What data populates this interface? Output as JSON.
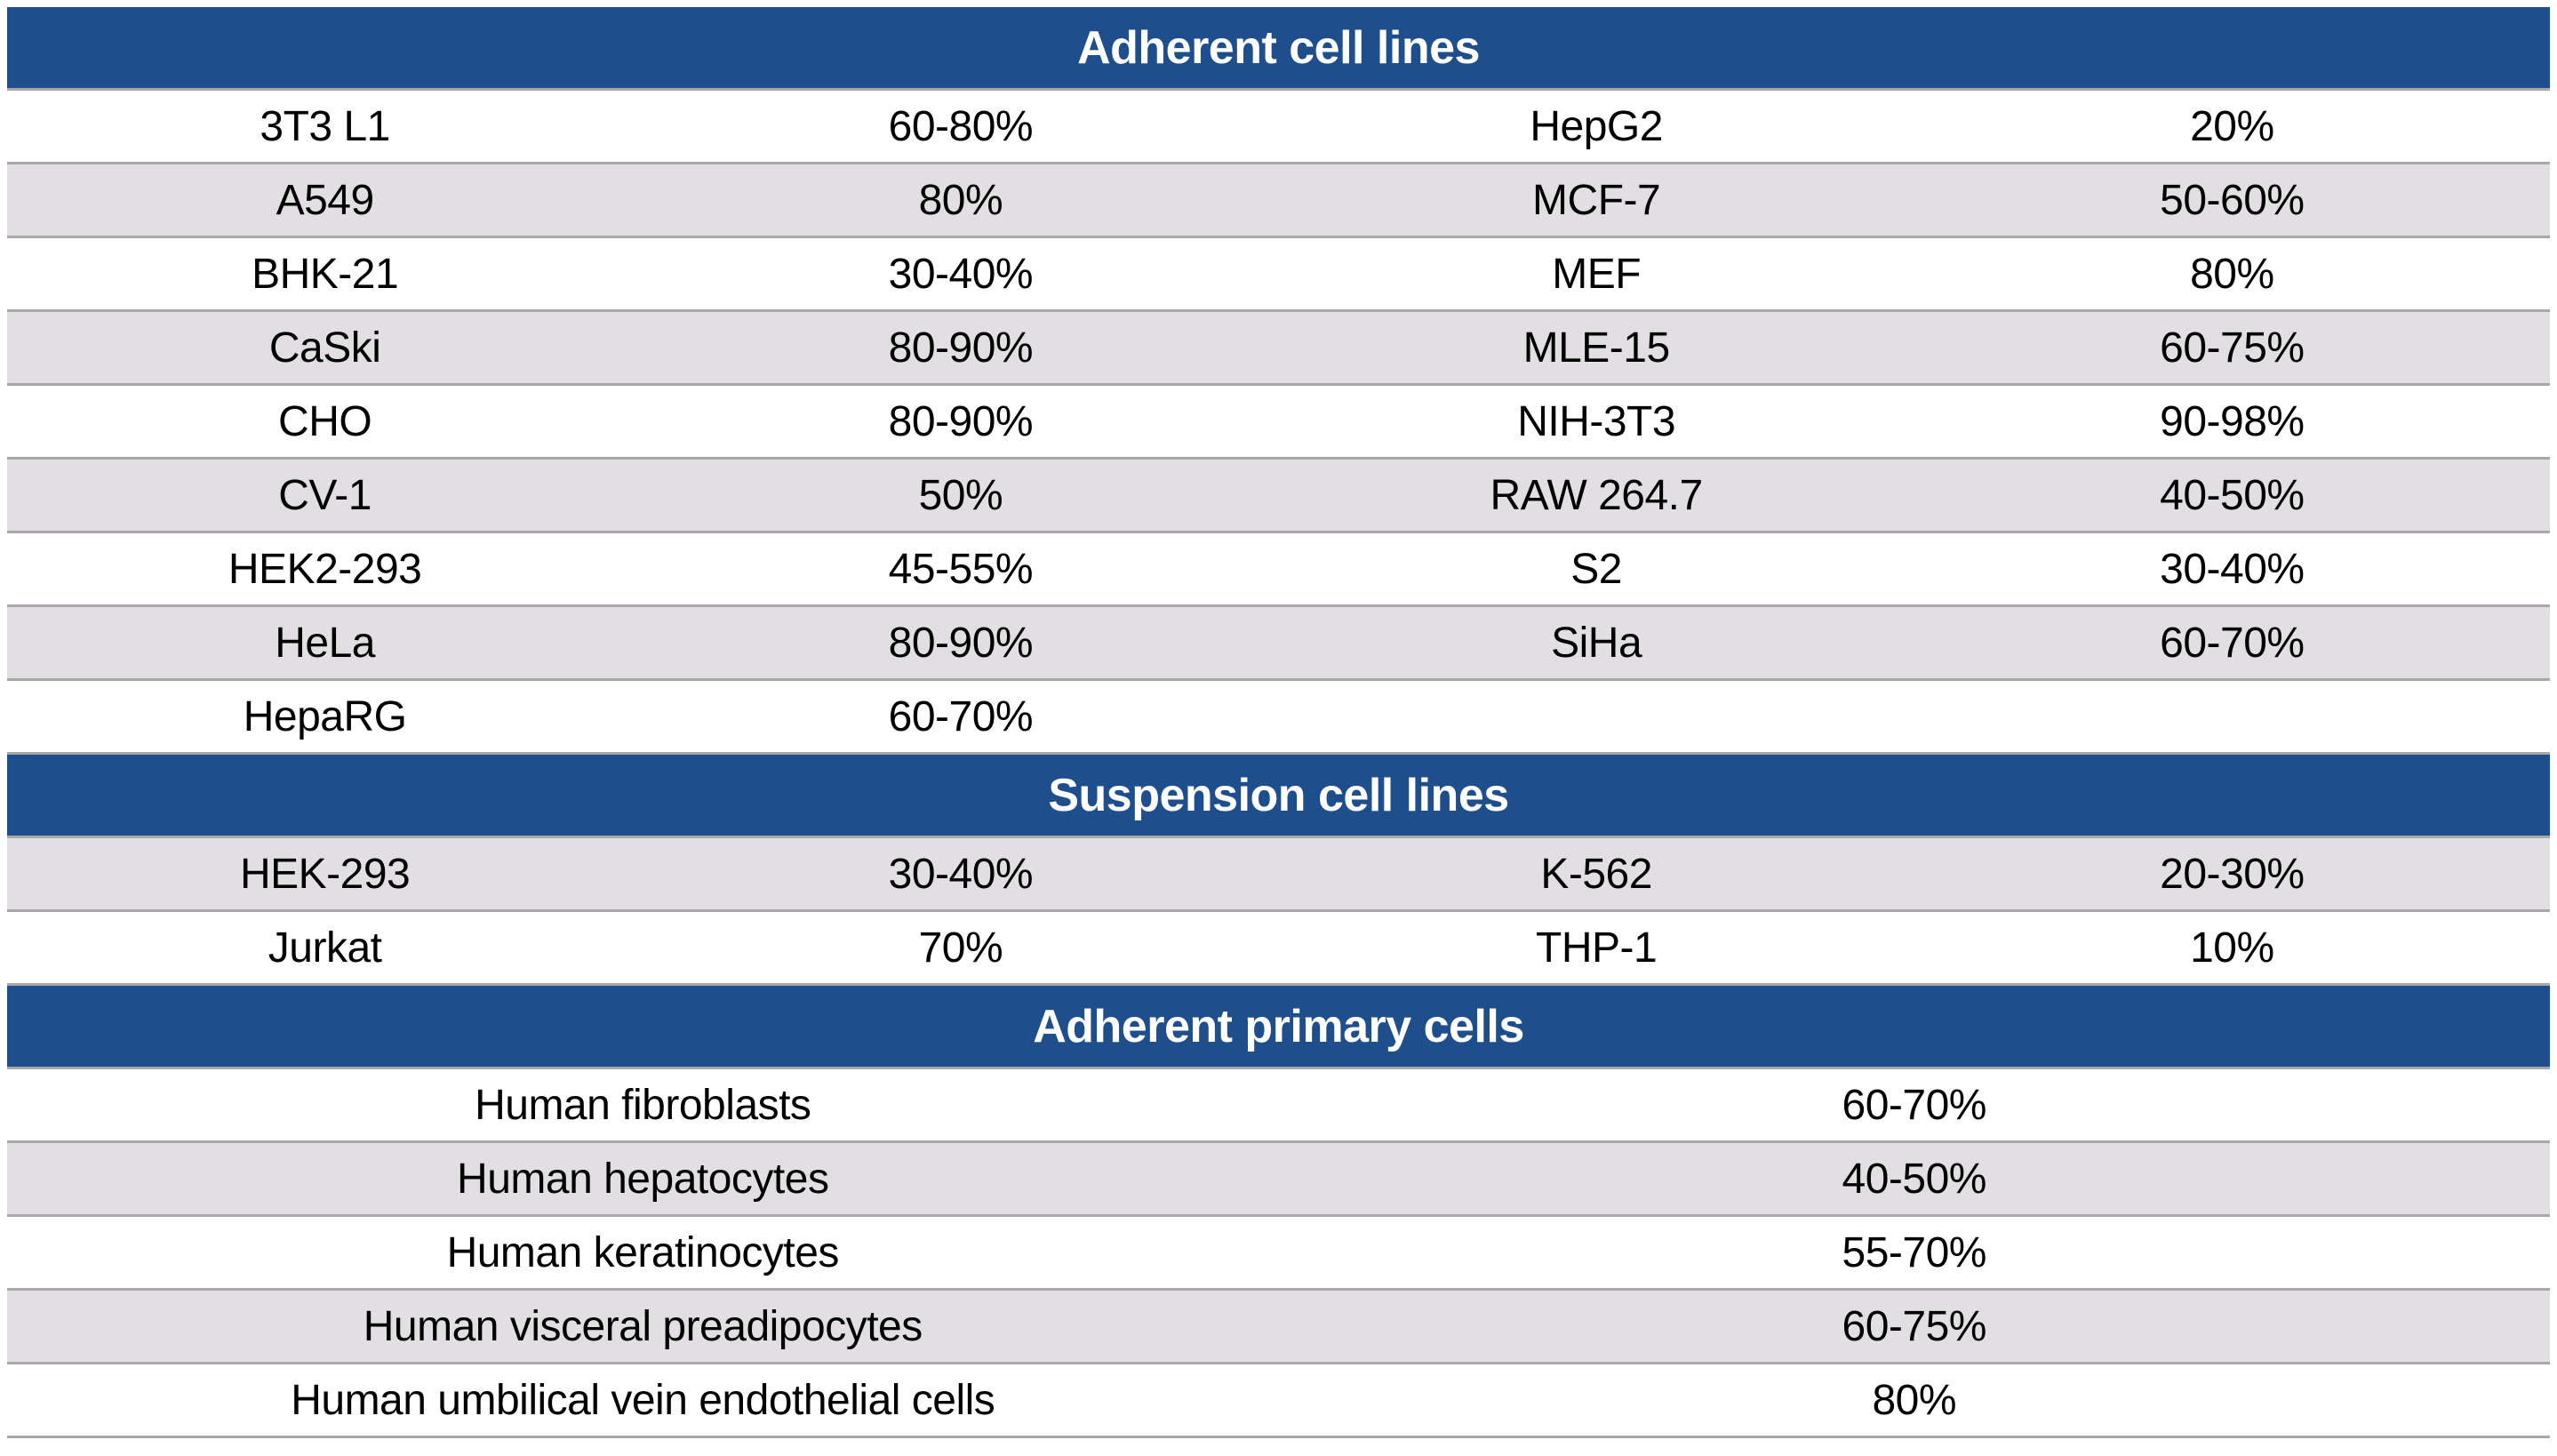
{
  "colors": {
    "header_bg": "#1F4E8C",
    "header_text": "#FFFFFF",
    "row_bg": "#FFFFFF",
    "row_alt_bg": "#E2DFE3",
    "border": "#A9A7AA",
    "text": "#000000"
  },
  "sections": [
    {
      "title": "Adherent cell lines",
      "columns": 4,
      "first_row_shaded": false,
      "rows": [
        [
          "3T3 L1",
          "60-80%",
          "HepG2",
          "20%"
        ],
        [
          "A549",
          "80%",
          "MCF-7",
          "50-60%"
        ],
        [
          "BHK-21",
          "30-40%",
          "MEF",
          "80%"
        ],
        [
          "CaSki",
          "80-90%",
          "MLE-15",
          "60-75%"
        ],
        [
          "CHO",
          "80-90%",
          "NIH-3T3",
          "90-98%"
        ],
        [
          "CV-1",
          "50%",
          "RAW 264.7",
          "40-50%"
        ],
        [
          "HEK2-293",
          "45-55%",
          "S2",
          "30-40%"
        ],
        [
          "HeLa",
          "80-90%",
          "SiHa",
          "60-70%"
        ],
        [
          "HepaRG",
          "60-70%",
          "",
          ""
        ]
      ]
    },
    {
      "title": "Suspension cell lines",
      "columns": 4,
      "first_row_shaded": true,
      "rows": [
        [
          "HEK-293",
          "30-40%",
          "K-562",
          "20-30%"
        ],
        [
          "Jurkat",
          "70%",
          "THP-1",
          "10%"
        ]
      ]
    },
    {
      "title": "Adherent primary cells",
      "columns": 2,
      "first_row_shaded": false,
      "rows": [
        [
          "Human fibroblasts",
          "60-70%"
        ],
        [
          "Human hepatocytes",
          "40-50%"
        ],
        [
          "Human keratinocytes",
          "55-70%"
        ],
        [
          "Human visceral preadipocytes",
          "60-75%"
        ],
        [
          "Human umbilical vein endothelial cells",
          "80%"
        ]
      ]
    }
  ]
}
